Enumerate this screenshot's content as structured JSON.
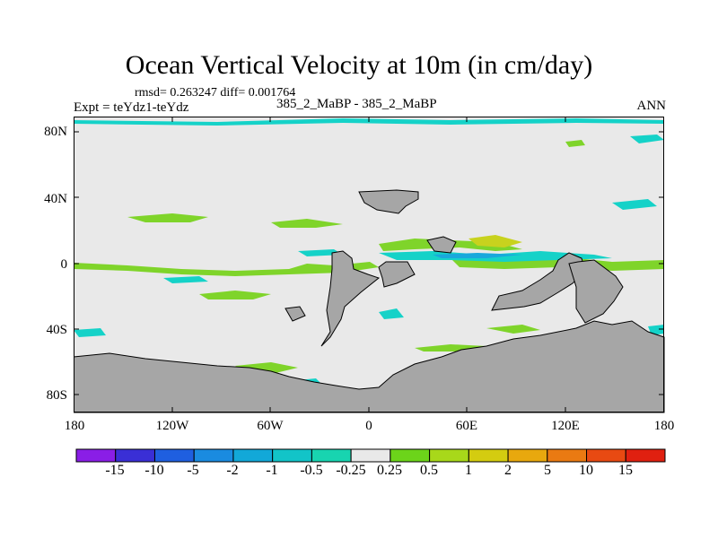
{
  "figure": {
    "title": "Ocean Vertical Velocity at 10m (in cm/day)",
    "stats": "rmsd= 0.263247 diff= 0.001764",
    "expt": "Expt = teYdz1-teYdz",
    "case": "385_2_MaBP - 385_2_MaBP",
    "season": "ANN"
  },
  "axes": {
    "lat_labels": [
      "80N",
      "40N",
      "0",
      "40S",
      "80S"
    ],
    "lon_labels": [
      "180",
      "120W",
      "60W",
      "0",
      "60E",
      "120E",
      "180"
    ]
  },
  "colorbar": {
    "labels": [
      "-15",
      "-10",
      "-5",
      "-2",
      "-1",
      "-0.5",
      "-0.25",
      "0.25",
      "0.5",
      "1",
      "2",
      "5",
      "10",
      "15"
    ],
    "colors": [
      "#8a1ee6",
      "#3a2fd6",
      "#1f5fe0",
      "#1a8be0",
      "#12a8d8",
      "#12c4c8",
      "#18d4b0",
      "#e9e9e9",
      "#6cd41a",
      "#a8d81a",
      "#d4cc10",
      "#e8a80e",
      "#ea7a12",
      "#e84a12",
      "#e02010"
    ]
  },
  "map_colors": {
    "land": "#a6a6a6",
    "field": "#e9e9e9",
    "up": "#7fd42a",
    "upStrong": "#c8d21e",
    "down": "#15d2c8",
    "downStrong": "#1aa8dc"
  }
}
